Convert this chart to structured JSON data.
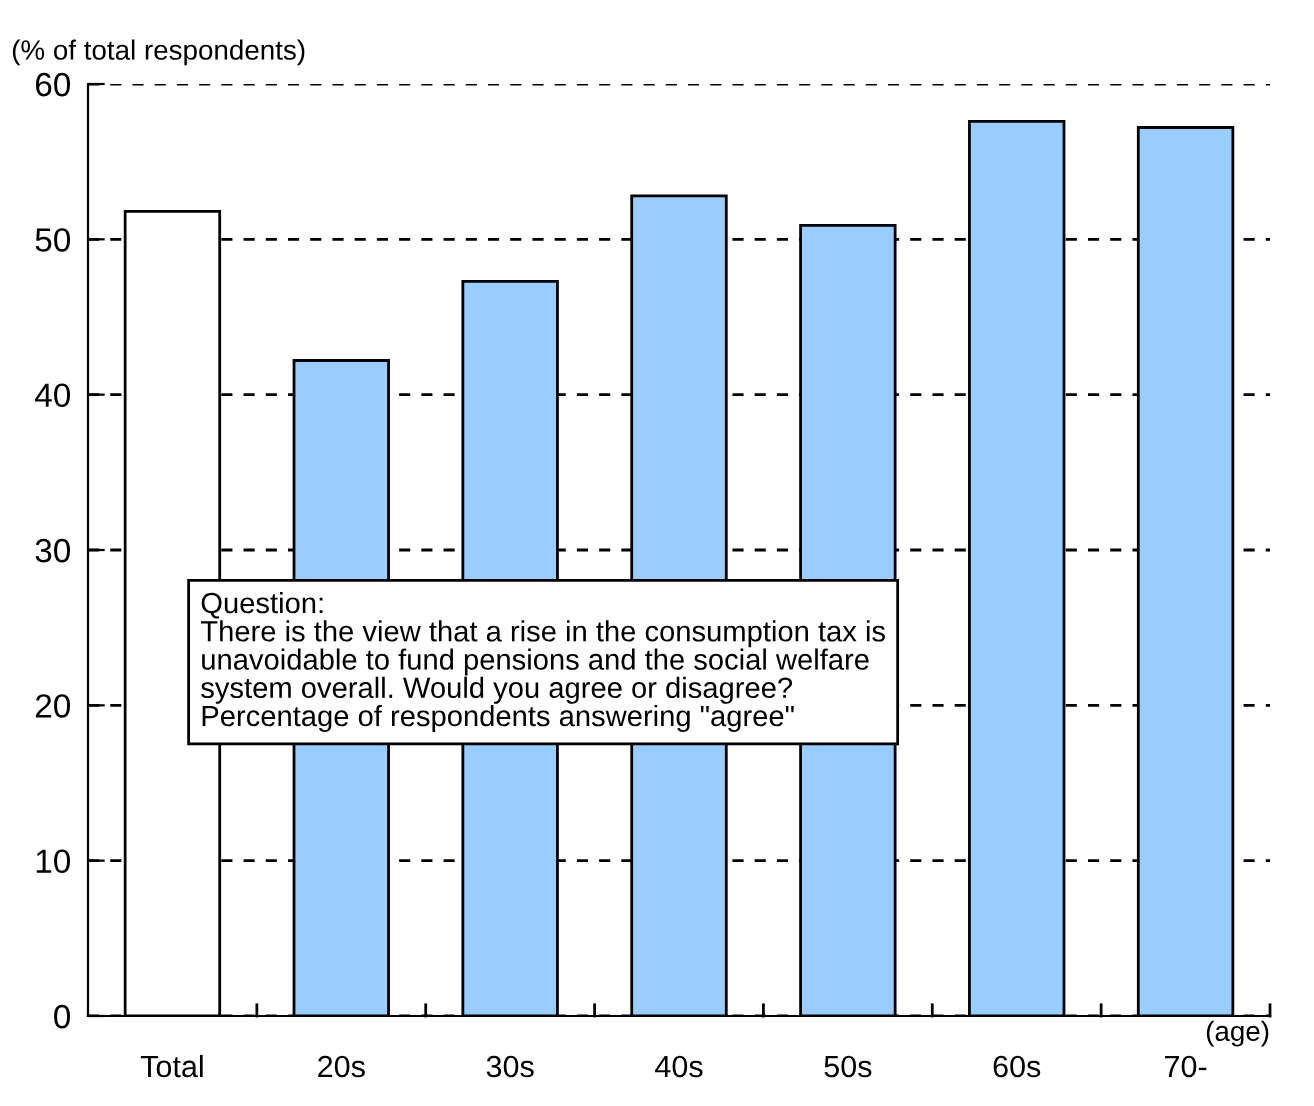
{
  "chart_data": {
    "type": "bar",
    "categories": [
      "Total",
      "20s",
      "30s",
      "40s",
      "50s",
      "60s",
      "70-"
    ],
    "values": [
      51.8,
      42.2,
      47.3,
      52.8,
      50.9,
      57.6,
      57.2
    ],
    "colors": [
      "#ffffff",
      "#99ccff",
      "#99ccff",
      "#99ccff",
      "#99ccff",
      "#99ccff",
      "#99ccff"
    ],
    "ylabel": "(% of total respondents)",
    "xlabel": "(age)",
    "ylim": [
      0,
      60
    ],
    "yticks": [
      0,
      10,
      20,
      30,
      40,
      50,
      60
    ],
    "grid": "y",
    "annotations": [
      "Question:\nThere is the view that a rise in the consumption tax is\nunavoidable to fund pensions and the social welfare\nsystem overall. Would you agree or disagree?\nPercentage of respondents answering \"agree\""
    ]
  }
}
